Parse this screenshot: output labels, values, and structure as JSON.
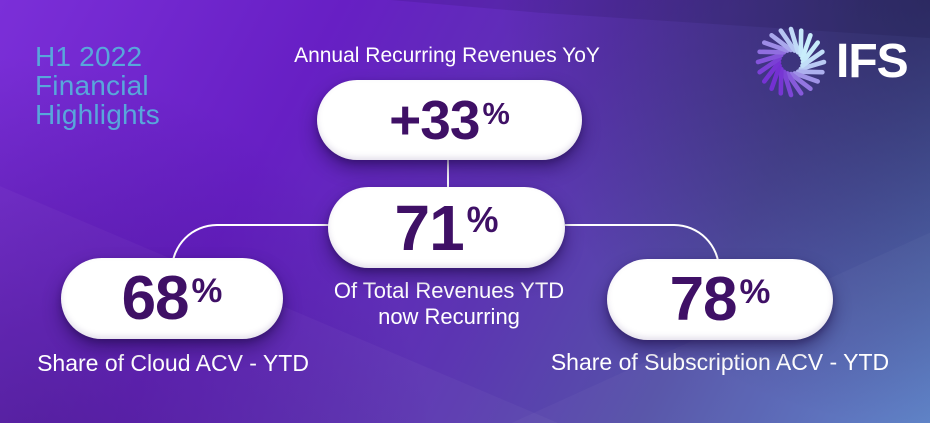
{
  "heading": {
    "lines": [
      "H1 2022",
      "Financial",
      "Highlights"
    ]
  },
  "brand": {
    "name": "IFS",
    "icon": "ifs-aperture-icon"
  },
  "stats": {
    "arr": {
      "label": "Annual Recurring Revenues YoY",
      "value": "+33",
      "unit": "%"
    },
    "recurring": {
      "value": "71",
      "unit": "%",
      "caption_lines": [
        "Of Total Revenues YTD",
        "now Recurring"
      ]
    },
    "cloud": {
      "value": "68",
      "unit": "%",
      "label": "Share of Cloud ACV - YTD"
    },
    "subscription": {
      "value": "78",
      "unit": "%",
      "label": "Share of Subscription ACV - YTD"
    }
  },
  "colors": {
    "background_top_left": "#7b2fd8",
    "background_mid_purple": "#671fc4",
    "background_bottom_right": "#5b80c7",
    "stat_number": "#3f1066",
    "heading_text": "#58a7db",
    "label_text": "#ffffff",
    "pill_background": "#ffffff",
    "connector_line": "#ffffff",
    "logo_blade_light": "#c9eefb",
    "logo_blade_dark": "#7430d2"
  }
}
